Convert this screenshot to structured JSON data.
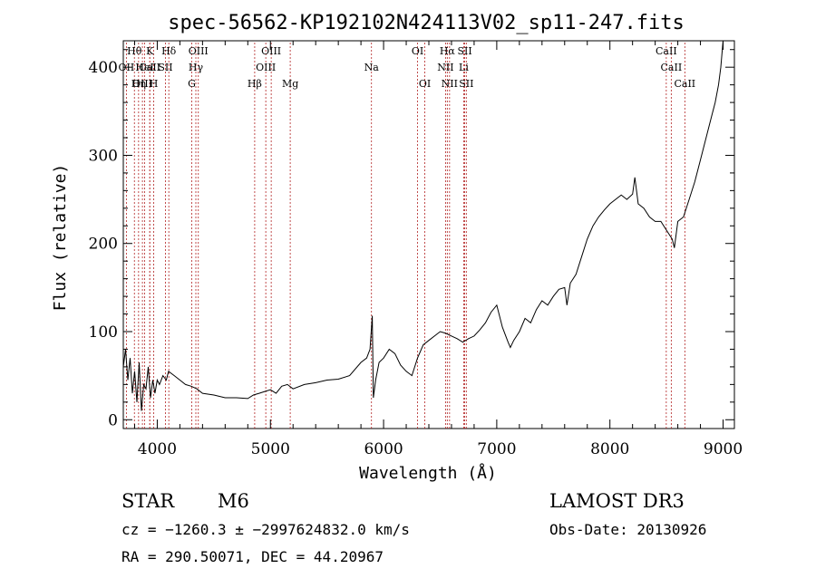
{
  "chart_data": {
    "type": "line",
    "title": "spec-56562-KP192102N424113V02_sp11-247.fits",
    "xlabel": "Wavelength (Å)",
    "ylabel": "Flux (relative)",
    "xlim": [
      3700,
      9100
    ],
    "ylim": [
      -10,
      430
    ],
    "x_ticks": [
      4000,
      5000,
      6000,
      7000,
      8000,
      9000
    ],
    "y_ticks": [
      0,
      100,
      200,
      300,
      400
    ],
    "series": [
      {
        "name": "flux",
        "points": [
          [
            3700,
            60
          ],
          [
            3720,
            80
          ],
          [
            3740,
            45
          ],
          [
            3760,
            70
          ],
          [
            3780,
            30
          ],
          [
            3800,
            55
          ],
          [
            3820,
            20
          ],
          [
            3840,
            65
          ],
          [
            3860,
            10
          ],
          [
            3880,
            40
          ],
          [
            3900,
            35
          ],
          [
            3920,
            60
          ],
          [
            3940,
            25
          ],
          [
            3960,
            45
          ],
          [
            3980,
            30
          ],
          [
            4000,
            45
          ],
          [
            4020,
            40
          ],
          [
            4050,
            50
          ],
          [
            4080,
            45
          ],
          [
            4100,
            55
          ],
          [
            4150,
            50
          ],
          [
            4200,
            45
          ],
          [
            4250,
            40
          ],
          [
            4300,
            38
          ],
          [
            4350,
            35
          ],
          [
            4400,
            30
          ],
          [
            4500,
            28
          ],
          [
            4600,
            25
          ],
          [
            4700,
            25
          ],
          [
            4800,
            24
          ],
          [
            4850,
            28
          ],
          [
            4900,
            30
          ],
          [
            4950,
            32
          ],
          [
            5000,
            34
          ],
          [
            5050,
            30
          ],
          [
            5100,
            38
          ],
          [
            5150,
            40
          ],
          [
            5200,
            35
          ],
          [
            5300,
            40
          ],
          [
            5400,
            42
          ],
          [
            5500,
            45
          ],
          [
            5600,
            46
          ],
          [
            5700,
            50
          ],
          [
            5800,
            65
          ],
          [
            5850,
            70
          ],
          [
            5880,
            80
          ],
          [
            5900,
            118
          ],
          [
            5910,
            25
          ],
          [
            5930,
            45
          ],
          [
            5960,
            65
          ],
          [
            6000,
            70
          ],
          [
            6050,
            80
          ],
          [
            6100,
            75
          ],
          [
            6150,
            62
          ],
          [
            6200,
            55
          ],
          [
            6250,
            50
          ],
          [
            6300,
            70
          ],
          [
            6350,
            85
          ],
          [
            6400,
            90
          ],
          [
            6450,
            95
          ],
          [
            6500,
            100
          ],
          [
            6550,
            98
          ],
          [
            6600,
            95
          ],
          [
            6650,
            92
          ],
          [
            6700,
            88
          ],
          [
            6750,
            92
          ],
          [
            6800,
            95
          ],
          [
            6850,
            102
          ],
          [
            6900,
            110
          ],
          [
            6950,
            122
          ],
          [
            7000,
            130
          ],
          [
            7050,
            105
          ],
          [
            7100,
            88
          ],
          [
            7120,
            82
          ],
          [
            7150,
            90
          ],
          [
            7200,
            100
          ],
          [
            7250,
            115
          ],
          [
            7300,
            110
          ],
          [
            7350,
            125
          ],
          [
            7400,
            135
          ],
          [
            7450,
            130
          ],
          [
            7500,
            140
          ],
          [
            7550,
            148
          ],
          [
            7600,
            150
          ],
          [
            7620,
            130
          ],
          [
            7650,
            155
          ],
          [
            7700,
            165
          ],
          [
            7750,
            185
          ],
          [
            7800,
            205
          ],
          [
            7850,
            220
          ],
          [
            7900,
            230
          ],
          [
            7950,
            238
          ],
          [
            8000,
            245
          ],
          [
            8050,
            250
          ],
          [
            8100,
            255
          ],
          [
            8150,
            250
          ],
          [
            8200,
            256
          ],
          [
            8220,
            275
          ],
          [
            8250,
            245
          ],
          [
            8300,
            240
          ],
          [
            8350,
            230
          ],
          [
            8400,
            225
          ],
          [
            8450,
            225
          ],
          [
            8500,
            215
          ],
          [
            8550,
            205
          ],
          [
            8570,
            195
          ],
          [
            8600,
            225
          ],
          [
            8650,
            230
          ],
          [
            8700,
            250
          ],
          [
            8750,
            270
          ],
          [
            8800,
            295
          ],
          [
            8850,
            320
          ],
          [
            8900,
            345
          ],
          [
            8930,
            360
          ],
          [
            8960,
            380
          ],
          [
            8980,
            400
          ],
          [
            9000,
            430
          ]
        ]
      }
    ],
    "lines": [
      {
        "name": "Hθ",
        "x": 3798,
        "row": 0
      },
      {
        "name": "OII",
        "x": 3727,
        "row": 1
      },
      {
        "name": "OIII",
        "x": 3869,
        "row": 2
      },
      {
        "name": "CaII",
        "x": 3934,
        "row": 1
      },
      {
        "name": "Hη",
        "x": 3835,
        "row": 2
      },
      {
        "name": "K",
        "x": 3934,
        "row": 0
      },
      {
        "name": "HeI",
        "x": 3889,
        "row": 1
      },
      {
        "name": "H",
        "x": 3969,
        "row": 2
      },
      {
        "name": "Hδ",
        "x": 4102,
        "row": 0
      },
      {
        "name": "SII",
        "x": 4072,
        "row": 1
      },
      {
        "name": "OIII",
        "x": 4363,
        "row": 0
      },
      {
        "name": "Hγ",
        "x": 4341,
        "row": 1
      },
      {
        "name": "G",
        "x": 4305,
        "row": 2
      },
      {
        "name": "Hβ",
        "x": 4861,
        "row": 2
      },
      {
        "name": "OIII",
        "x": 5007,
        "row": 0
      },
      {
        "name": "OIII",
        "x": 4959,
        "row": 1
      },
      {
        "name": "Mg",
        "x": 5175,
        "row": 2
      },
      {
        "name": "Na",
        "x": 5893,
        "row": 1
      },
      {
        "name": "OI",
        "x": 6300,
        "row": 0
      },
      {
        "name": "OI",
        "x": 6364,
        "row": 2
      },
      {
        "name": "Hα",
        "x": 6563,
        "row": 0
      },
      {
        "name": "NII",
        "x": 6548,
        "row": 1
      },
      {
        "name": "NII",
        "x": 6583,
        "row": 2
      },
      {
        "name": "SII",
        "x": 6717,
        "row": 0
      },
      {
        "name": "Li",
        "x": 6708,
        "row": 1
      },
      {
        "name": "SII",
        "x": 6731,
        "row": 2
      },
      {
        "name": "CaII",
        "x": 8498,
        "row": 0
      },
      {
        "name": "CaII",
        "x": 8542,
        "row": 1
      },
      {
        "name": "CaII",
        "x": 8662,
        "row": 2
      }
    ]
  },
  "info": {
    "object_class": "STAR",
    "subclass": "M6",
    "survey": "LAMOST DR3",
    "cz": "cz = −1260.3 ± −2997624832.0 km/s",
    "obs_date": "Obs-Date: 20130926",
    "coords": "RA = 290.50071, DEC =  44.20967"
  }
}
